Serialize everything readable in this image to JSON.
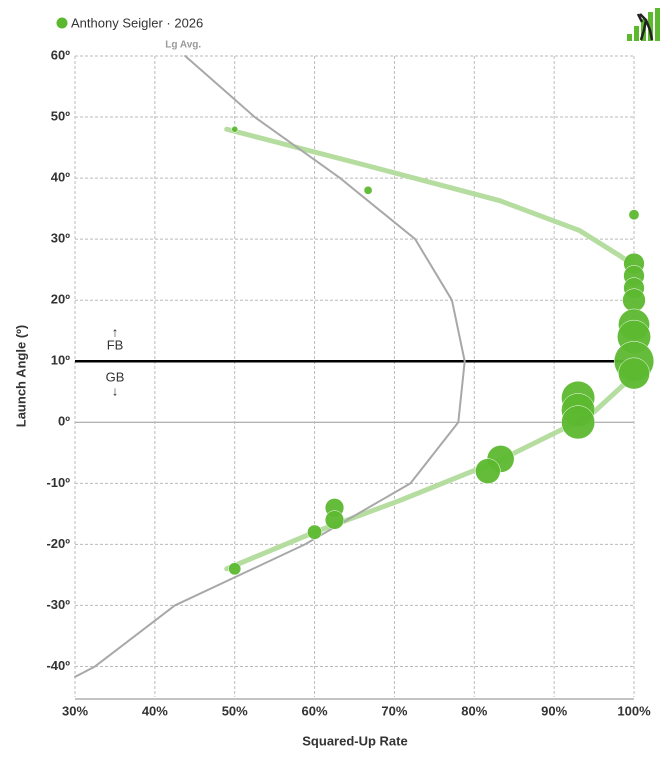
{
  "chart_data": {
    "type": "bubble",
    "legend": "Anthony Seigler · 2026",
    "xlabel": "Squared-Up Rate",
    "ylabel": "Launch Angle (º)",
    "xlim": [
      30,
      100
    ],
    "ylim": [
      -45,
      60
    ],
    "xticks": [
      {
        "value": 30,
        "label": "30%"
      },
      {
        "value": 40,
        "label": "40%"
      },
      {
        "value": 50,
        "label": "50%"
      },
      {
        "value": 60,
        "label": "60%"
      },
      {
        "value": 70,
        "label": "70%"
      },
      {
        "value": 80,
        "label": "80%"
      },
      {
        "value": 90,
        "label": "90%"
      },
      {
        "value": 100,
        "label": "100%"
      }
    ],
    "yticks": [
      {
        "value": 60,
        "label": "60º"
      },
      {
        "value": 50,
        "label": "50º"
      },
      {
        "value": 40,
        "label": "40º"
      },
      {
        "value": 30,
        "label": "30º"
      },
      {
        "value": 20,
        "label": "20º"
      },
      {
        "value": 10,
        "label": "10º"
      },
      {
        "value": 0,
        "label": "0º"
      },
      {
        "value": -10,
        "label": "-10º"
      },
      {
        "value": -20,
        "label": "-20º"
      },
      {
        "value": -30,
        "label": "-30º"
      },
      {
        "value": -40,
        "label": "-40º"
      }
    ],
    "grid": true,
    "ref_line": 10,
    "ref_above": "FB",
    "ref_below": "GB",
    "arrow_up": "↑",
    "arrow_down": "↓",
    "series": [
      {
        "name": "Anthony Seigler · 2026",
        "color": "#5cb82f",
        "x": [
          50,
          66.7,
          100,
          100,
          100,
          100,
          100,
          100,
          100,
          100,
          100,
          93,
          93,
          93,
          83.3,
          81.7,
          62.5,
          62.5,
          60,
          50
        ],
        "values": [
          48,
          38,
          34,
          26,
          24,
          22,
          20,
          16,
          14,
          10,
          8,
          4,
          2,
          0,
          -6,
          -8,
          -14,
          -16,
          -18,
          -24
        ],
        "sizes": [
          1,
          2,
          3,
          8,
          8,
          8,
          9,
          13,
          14,
          17,
          13,
          14,
          14,
          14,
          11,
          10,
          7,
          7,
          5,
          4
        ]
      },
      {
        "name": "Lg Avg.",
        "color": "#a8a8a8",
        "x": [
          43.8,
          52.5,
          63.2,
          72.6,
          77.2,
          78.8,
          78,
          72,
          58.8,
          42.5,
          32.5,
          30
        ],
        "values": [
          60,
          50,
          40,
          30,
          20,
          10,
          0,
          -10,
          -20,
          -30,
          -40,
          -41.7
        ]
      },
      {
        "name": null,
        "color": "#b5dda0",
        "x": [
          49,
          66.7,
          83.2,
          93.2,
          98.2,
          100,
          null,
          49,
          60,
          70.7,
          83.2,
          94.5,
          100
        ],
        "values": [
          48,
          42,
          36.3,
          31.4,
          27.3,
          25.7,
          null,
          -24,
          -18,
          -12.8,
          -6.2,
          1.1,
          7.7
        ]
      }
    ]
  }
}
